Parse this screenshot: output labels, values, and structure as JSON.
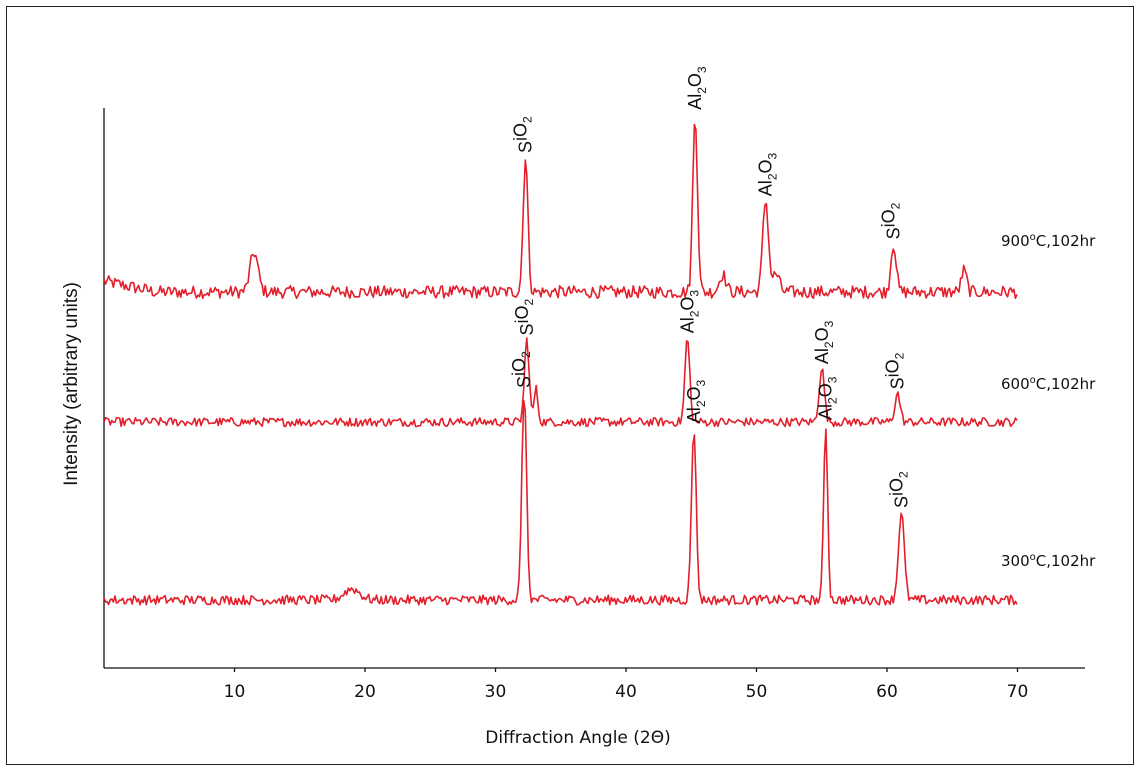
{
  "chart_data": {
    "type": "line",
    "xlabel": "Diffraction Angle (2Θ)",
    "ylabel": "Intensity (arbitrary units)",
    "xlim": [
      0,
      75
    ],
    "x_ticks": [
      10,
      20,
      30,
      40,
      50,
      60,
      70
    ],
    "x_tick_labels": [
      "10",
      "20",
      "30",
      "40",
      "50",
      "60",
      "70"
    ],
    "y_ticks": [],
    "grid": false,
    "legend": "none (series labelled at right end of each trace)",
    "line_color": "#e31f2b",
    "series": [
      {
        "name": "900°C,102hr",
        "label_main": "900",
        "label_sup": "o",
        "label_tail": "C,102hr",
        "x_range": [
          0,
          70
        ],
        "baseline": 0.14,
        "start_level": 0.2,
        "noise": 0.035,
        "peaks": [
          {
            "x": 11.5,
            "height": 0.22,
            "width": 0.3,
            "label": ""
          },
          {
            "x": 32.3,
            "height": 0.75,
            "width": 0.18,
            "label": "SiO2"
          },
          {
            "x": 45.3,
            "height": 0.99,
            "width": 0.18,
            "label": "Al2O3"
          },
          {
            "x": 47.4,
            "height": 0.1,
            "width": 0.25,
            "label": ""
          },
          {
            "x": 50.7,
            "height": 0.51,
            "width": 0.22,
            "label": "Al2O3"
          },
          {
            "x": 51.5,
            "height": 0.1,
            "width": 0.25,
            "label": ""
          },
          {
            "x": 60.5,
            "height": 0.27,
            "width": 0.2,
            "label": "SiO2"
          },
          {
            "x": 65.9,
            "height": 0.12,
            "width": 0.2,
            "label": ""
          }
        ]
      },
      {
        "name": "600°C,102hr",
        "label_main": "600",
        "label_sup": "o",
        "label_tail": "C,102hr",
        "x_range": [
          0,
          70
        ],
        "baseline": 0.1,
        "start_level": 0.1,
        "noise": 0.04,
        "peaks": [
          {
            "x": 32.4,
            "height": 0.75,
            "width": 0.18,
            "label": "SiO2"
          },
          {
            "x": 33.1,
            "height": 0.3,
            "width": 0.15,
            "label": ""
          },
          {
            "x": 44.7,
            "height": 0.77,
            "width": 0.18,
            "label": "Al2O3"
          },
          {
            "x": 55.0,
            "height": 0.49,
            "width": 0.2,
            "label": "Al2O3"
          },
          {
            "x": 60.8,
            "height": 0.26,
            "width": 0.2,
            "label": "SiO2"
          }
        ]
      },
      {
        "name": "300°C,102hr",
        "label_main": "300",
        "label_sup": "o",
        "label_tail": "C,102hr",
        "x_range": [
          0,
          70
        ],
        "baseline": 0.13,
        "start_level": 0.13,
        "noise": 0.03,
        "peaks": [
          {
            "x": 19.0,
            "height": 0.07,
            "width": 0.6,
            "label": ""
          },
          {
            "x": 32.2,
            "height": 1.3,
            "width": 0.18,
            "label": "SiO2"
          },
          {
            "x": 45.2,
            "height": 1.08,
            "width": 0.18,
            "label": "Al2O3"
          },
          {
            "x": 55.3,
            "height": 1.1,
            "width": 0.15,
            "label": "Al2O3"
          },
          {
            "x": 61.1,
            "height": 0.55,
            "width": 0.22,
            "label": "SiO2"
          }
        ]
      }
    ]
  }
}
